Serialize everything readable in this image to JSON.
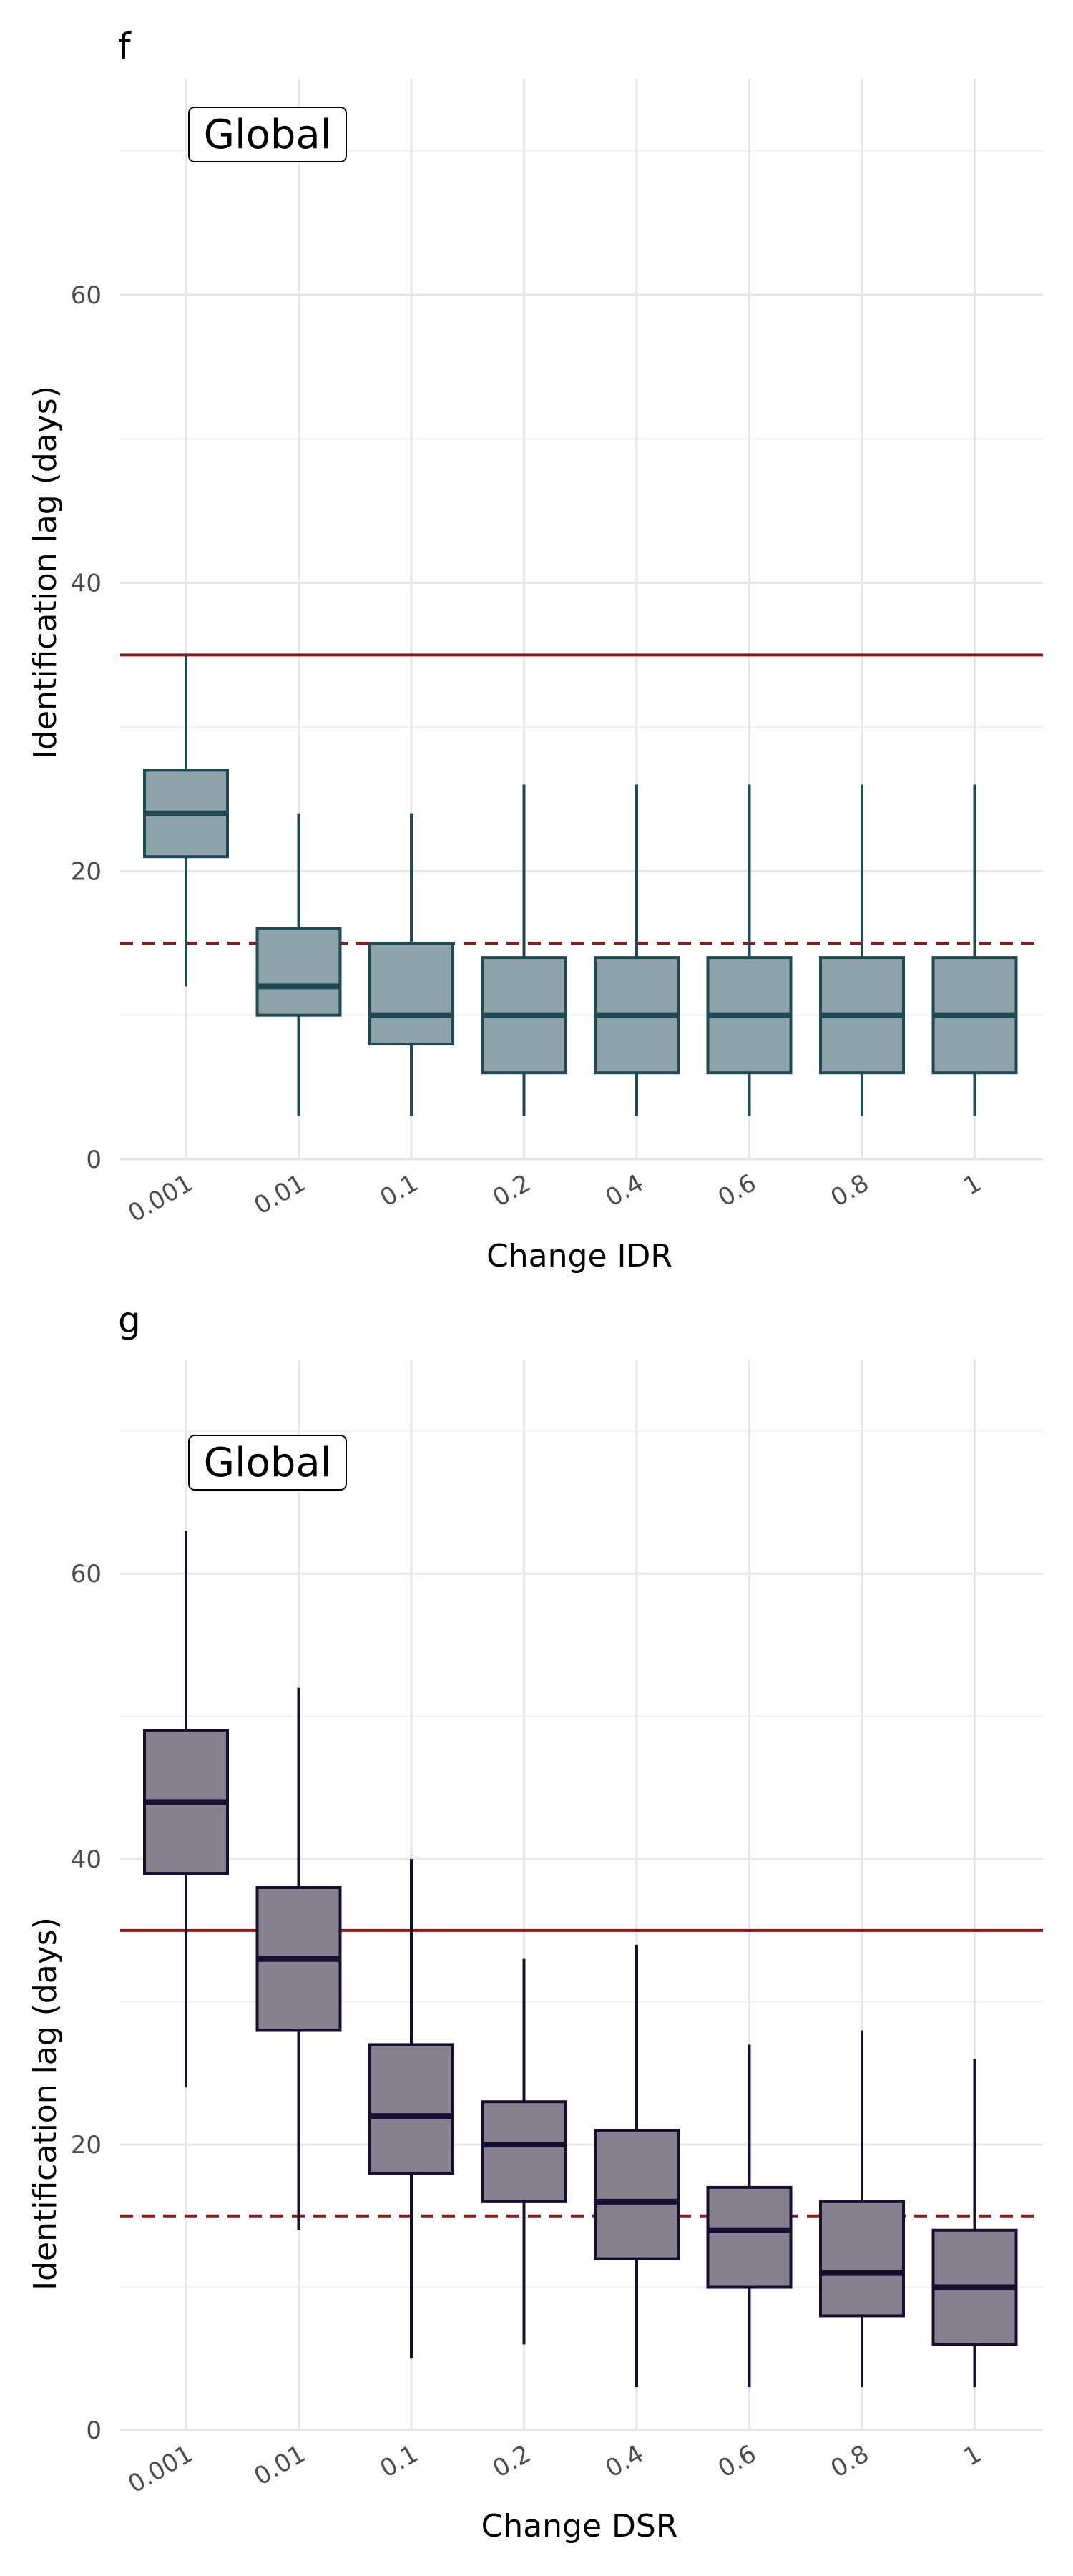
{
  "chart_data": [
    {
      "panel_tag": "f",
      "type": "box",
      "region_label": "Global",
      "xlabel": "Change IDR",
      "ylabel": "Identification lag (days)",
      "ylim": [
        0,
        75
      ],
      "y_ticks": [
        0,
        20,
        40,
        60
      ],
      "grid": true,
      "categories": [
        "0.001",
        "0.01",
        "0.1",
        "0.2",
        "0.4",
        "0.6",
        "0.8",
        "1"
      ],
      "box_fill": "#8fa3aa",
      "box_stroke": "#1f4a54",
      "reference_lines": [
        {
          "value": 35,
          "style": "solid",
          "color": "#8b1a1a"
        },
        {
          "value": 15,
          "style": "dashed",
          "color": "#8b1a1a"
        }
      ],
      "boxes": [
        {
          "min": 12,
          "q1": 21,
          "median": 24,
          "q3": 27,
          "max": 35
        },
        {
          "min": 3,
          "q1": 10,
          "median": 12,
          "q3": 16,
          "max": 24
        },
        {
          "min": 3,
          "q1": 8,
          "median": 10,
          "q3": 15,
          "max": 24
        },
        {
          "min": 3,
          "q1": 6,
          "median": 10,
          "q3": 14,
          "max": 26
        },
        {
          "min": 3,
          "q1": 6,
          "median": 10,
          "q3": 14,
          "max": 26
        },
        {
          "min": 3,
          "q1": 6,
          "median": 10,
          "q3": 14,
          "max": 26
        },
        {
          "min": 3,
          "q1": 6,
          "median": 10,
          "q3": 14,
          "max": 26
        },
        {
          "min": 3,
          "q1": 6,
          "median": 10,
          "q3": 14,
          "max": 26
        }
      ]
    },
    {
      "panel_tag": "g",
      "type": "box",
      "region_label": "Global",
      "xlabel": "Change DSR",
      "ylabel": "Identification lag (days)",
      "ylim": [
        0,
        75
      ],
      "y_ticks": [
        0,
        20,
        40,
        60
      ],
      "grid": true,
      "categories": [
        "0.001",
        "0.01",
        "0.1",
        "0.2",
        "0.4",
        "0.6",
        "0.8",
        "1"
      ],
      "box_fill": "#86808f",
      "box_stroke": "#150f30",
      "reference_lines": [
        {
          "value": 35,
          "style": "solid",
          "color": "#8b1a1a"
        },
        {
          "value": 15,
          "style": "dashed",
          "color": "#8b1a1a"
        }
      ],
      "boxes": [
        {
          "min": 24,
          "q1": 39,
          "median": 44,
          "q3": 49,
          "max": 63
        },
        {
          "min": 14,
          "q1": 28,
          "median": 33,
          "q3": 38,
          "max": 52
        },
        {
          "min": 5,
          "q1": 18,
          "median": 22,
          "q3": 27,
          "max": 40
        },
        {
          "min": 6,
          "q1": 16,
          "median": 20,
          "q3": 23,
          "max": 33
        },
        {
          "min": 3,
          "q1": 12,
          "median": 16,
          "q3": 21,
          "max": 34
        },
        {
          "min": 3,
          "q1": 10,
          "median": 14,
          "q3": 17,
          "max": 27
        },
        {
          "min": 3,
          "q1": 8,
          "median": 11,
          "q3": 16,
          "max": 28
        },
        {
          "min": 3,
          "q1": 6,
          "median": 10,
          "q3": 14,
          "max": 26
        }
      ]
    }
  ]
}
